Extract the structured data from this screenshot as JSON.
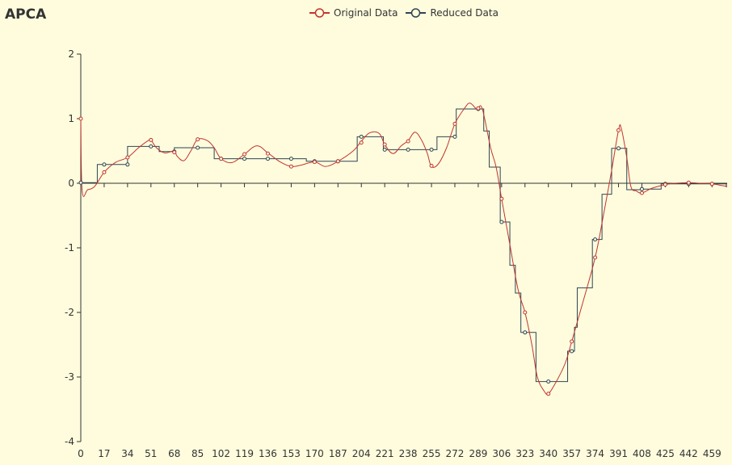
{
  "chart_data": {
    "type": "line",
    "title": "APCA",
    "colors": {
      "original": "#c23531",
      "reduced": "#2f4554",
      "background": "#fefcdd",
      "axis": "#333333"
    },
    "x_ticks": [
      0,
      17,
      34,
      51,
      68,
      85,
      102,
      119,
      136,
      153,
      170,
      187,
      204,
      221,
      238,
      255,
      272,
      289,
      306,
      323,
      340,
      357,
      374,
      391,
      408,
      425,
      442,
      459
    ],
    "y_ticks": [
      2,
      1,
      0,
      -1,
      -2,
      -3,
      -4
    ],
    "xlim": [
      0,
      470
    ],
    "ylim": [
      -4,
      2
    ],
    "series": [
      {
        "name": "Original Data",
        "line": "smooth",
        "symbol": "circle",
        "points": [
          [
            0,
            1.0
          ],
          [
            1,
            -0.12
          ],
          [
            5,
            -0.1
          ],
          [
            10,
            -0.05
          ],
          [
            17,
            0.17
          ],
          [
            25,
            0.32
          ],
          [
            34,
            0.4
          ],
          [
            42,
            0.55
          ],
          [
            49,
            0.66
          ],
          [
            51,
            0.67
          ],
          [
            55,
            0.55
          ],
          [
            61,
            0.47
          ],
          [
            68,
            0.5
          ],
          [
            70,
            0.42
          ],
          [
            75,
            0.35
          ],
          [
            80,
            0.5
          ],
          [
            85,
            0.68
          ],
          [
            92,
            0.66
          ],
          [
            97,
            0.55
          ],
          [
            102,
            0.38
          ],
          [
            110,
            0.32
          ],
          [
            119,
            0.45
          ],
          [
            128,
            0.58
          ],
          [
            136,
            0.47
          ],
          [
            145,
            0.33
          ],
          [
            153,
            0.26
          ],
          [
            160,
            0.28
          ],
          [
            170,
            0.33
          ],
          [
            178,
            0.26
          ],
          [
            187,
            0.34
          ],
          [
            198,
            0.5
          ],
          [
            204,
            0.65
          ],
          [
            210,
            0.78
          ],
          [
            217,
            0.77
          ],
          [
            221,
            0.6
          ],
          [
            227,
            0.46
          ],
          [
            233,
            0.58
          ],
          [
            238,
            0.66
          ],
          [
            243,
            0.79
          ],
          [
            248,
            0.66
          ],
          [
            252,
            0.46
          ],
          [
            255,
            0.26
          ],
          [
            260,
            0.3
          ],
          [
            266,
            0.55
          ],
          [
            272,
            0.92
          ],
          [
            279,
            1.16
          ],
          [
            283,
            1.24
          ],
          [
            288,
            1.14
          ],
          [
            289,
            1.16
          ],
          [
            292,
            1.15
          ],
          [
            298,
            0.55
          ],
          [
            302,
            0.25
          ],
          [
            306,
            -0.24
          ],
          [
            312,
            -0.95
          ],
          [
            318,
            -1.65
          ],
          [
            323,
            -2.0
          ],
          [
            328,
            -2.5
          ],
          [
            332,
            -3.0
          ],
          [
            337,
            -3.22
          ],
          [
            340,
            -3.26
          ],
          [
            345,
            -3.1
          ],
          [
            352,
            -2.8
          ],
          [
            357,
            -2.45
          ],
          [
            365,
            -1.85
          ],
          [
            374,
            -1.15
          ],
          [
            380,
            -0.5
          ],
          [
            386,
            0.2
          ],
          [
            391,
            0.82
          ],
          [
            393,
            0.85
          ],
          [
            397,
            0.4
          ],
          [
            400,
            -0.05
          ],
          [
            404,
            -0.12
          ],
          [
            408,
            -0.15
          ],
          [
            415,
            -0.08
          ],
          [
            425,
            -0.02
          ],
          [
            432,
            0.0
          ],
          [
            442,
            0.01
          ],
          [
            450,
            0.0
          ],
          [
            459,
            -0.01
          ],
          [
            470,
            -0.05
          ]
        ],
        "marked_points": [
          [
            0,
            1.0
          ],
          [
            17,
            0.17
          ],
          [
            34,
            0.4
          ],
          [
            51,
            0.67
          ],
          [
            68,
            0.48
          ],
          [
            85,
            0.68
          ],
          [
            102,
            0.38
          ],
          [
            119,
            0.45
          ],
          [
            136,
            0.46
          ],
          [
            153,
            0.26
          ],
          [
            170,
            0.33
          ],
          [
            187,
            0.34
          ],
          [
            204,
            0.63
          ],
          [
            221,
            0.6
          ],
          [
            238,
            0.65
          ],
          [
            255,
            0.27
          ],
          [
            272,
            0.92
          ],
          [
            289,
            1.16
          ],
          [
            306,
            -0.24
          ],
          [
            323,
            -2.0
          ],
          [
            340,
            -3.26
          ],
          [
            357,
            -2.45
          ],
          [
            374,
            -1.15
          ],
          [
            391,
            0.82
          ],
          [
            408,
            -0.15
          ],
          [
            425,
            -0.02
          ],
          [
            442,
            0.01
          ],
          [
            459,
            -0.01
          ]
        ]
      },
      {
        "name": "Reduced Data",
        "line": "step",
        "symbol": "circle",
        "steps": [
          [
            0,
            0.01
          ],
          [
            12,
            0.01
          ],
          [
            12,
            0.29
          ],
          [
            34,
            0.29
          ],
          [
            34,
            0.57
          ],
          [
            57,
            0.57
          ],
          [
            57,
            0.49
          ],
          [
            68,
            0.49
          ],
          [
            68,
            0.55
          ],
          [
            97,
            0.55
          ],
          [
            97,
            0.38
          ],
          [
            164,
            0.38
          ],
          [
            164,
            0.34
          ],
          [
            201,
            0.34
          ],
          [
            201,
            0.72
          ],
          [
            220,
            0.72
          ],
          [
            220,
            0.52
          ],
          [
            259,
            0.52
          ],
          [
            259,
            0.72
          ],
          [
            273,
            0.72
          ],
          [
            273,
            1.15
          ],
          [
            293,
            1.15
          ],
          [
            293,
            0.81
          ],
          [
            297,
            0.81
          ],
          [
            297,
            0.25
          ],
          [
            305,
            0.25
          ],
          [
            305,
            -0.6
          ],
          [
            312,
            -0.6
          ],
          [
            312,
            -1.27
          ],
          [
            316,
            -1.27
          ],
          [
            316,
            -1.7
          ],
          [
            320,
            -1.7
          ],
          [
            320,
            -2.31
          ],
          [
            331,
            -2.31
          ],
          [
            331,
            -3.07
          ],
          [
            354,
            -3.07
          ],
          [
            354,
            -2.6
          ],
          [
            359,
            -2.6
          ],
          [
            359,
            -2.23
          ],
          [
            361,
            -2.23
          ],
          [
            361,
            -1.62
          ],
          [
            372,
            -1.62
          ],
          [
            372,
            -0.87
          ],
          [
            379,
            -0.87
          ],
          [
            379,
            -0.17
          ],
          [
            386,
            -0.17
          ],
          [
            386,
            0.54
          ],
          [
            397,
            0.54
          ],
          [
            397,
            -0.1
          ],
          [
            408,
            -0.1
          ],
          [
            408,
            -0.09
          ],
          [
            422,
            -0.09
          ],
          [
            422,
            -0.01
          ],
          [
            470,
            -0.01
          ]
        ],
        "marked_points": [
          [
            0,
            0.01
          ],
          [
            17,
            0.29
          ],
          [
            34,
            0.29
          ],
          [
            51,
            0.57
          ],
          [
            68,
            0.49
          ],
          [
            85,
            0.55
          ],
          [
            102,
            0.38
          ],
          [
            119,
            0.38
          ],
          [
            136,
            0.38
          ],
          [
            153,
            0.38
          ],
          [
            170,
            0.34
          ],
          [
            187,
            0.34
          ],
          [
            204,
            0.72
          ],
          [
            221,
            0.52
          ],
          [
            238,
            0.52
          ],
          [
            255,
            0.52
          ],
          [
            272,
            0.72
          ],
          [
            289,
            1.15
          ],
          [
            306,
            -0.6
          ],
          [
            323,
            -2.31
          ],
          [
            340,
            -3.07
          ],
          [
            357,
            -2.6
          ],
          [
            374,
            -0.87
          ],
          [
            391,
            0.54
          ],
          [
            408,
            -0.09
          ],
          [
            425,
            -0.01
          ],
          [
            442,
            -0.01
          ],
          [
            459,
            -0.01
          ]
        ]
      }
    ]
  }
}
